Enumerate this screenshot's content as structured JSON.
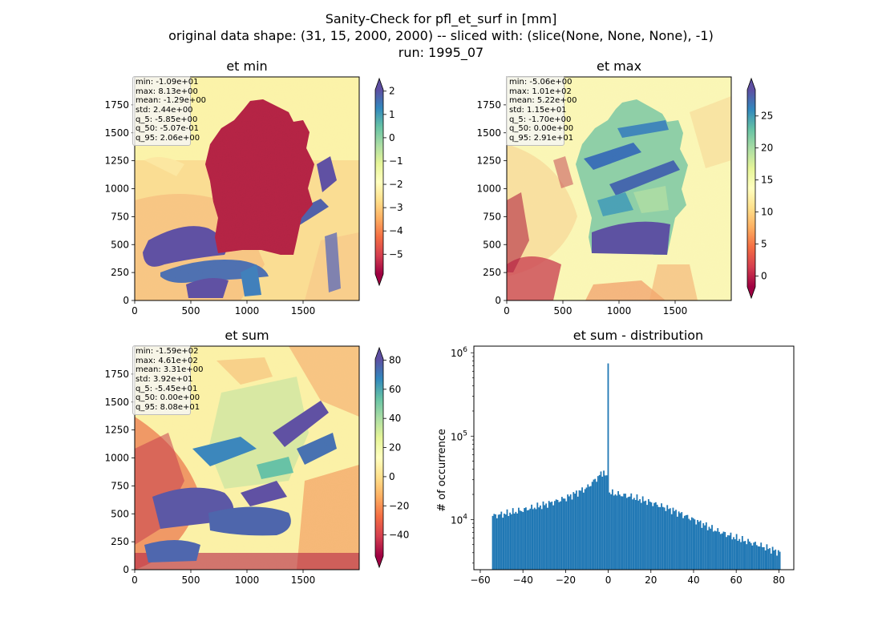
{
  "figure": {
    "title_lines": [
      "Sanity-Check for pfl_et_surf in [mm]",
      "original data shape: (31, 15, 2000, 2000) -- sliced with: (slice(None, None, None), -1)",
      "run: 1995_07"
    ]
  },
  "colors": {
    "background": "#ffffff",
    "hist_bar": "#1f77b4",
    "colormap": "Spectral",
    "spectral_stops": [
      "#9e0142",
      "#d53e4f",
      "#f46d43",
      "#fdae61",
      "#fee08b",
      "#ffffbf",
      "#e6f598",
      "#abdda4",
      "#66c2a5",
      "#3288bd",
      "#5e4fa2"
    ]
  },
  "chart_data": [
    {
      "id": "et_min",
      "type": "heatmap",
      "title": "et min",
      "xlim": [
        0,
        2000
      ],
      "ylim": [
        0,
        2000
      ],
      "xticks": [
        0,
        500,
        1000,
        1500
      ],
      "yticks": [
        0,
        250,
        500,
        750,
        1000,
        1250,
        1500,
        1750
      ],
      "colorbar": {
        "vmin": -5.85,
        "vmax": 2.06,
        "ticks": [
          -5,
          -4,
          -3,
          -2,
          -1,
          0,
          1,
          2
        ],
        "tick_labels": [
          "−5",
          "−4",
          "−3",
          "−2",
          "−1",
          "0",
          "1",
          "2"
        ],
        "extend": "both"
      },
      "stats": [
        "min: -1.09e+01",
        "max: 8.13e+00",
        "mean: -1.29e+00",
        "std: 2.44e+00",
        "q_5: -5.85e+00",
        "q_50: -5.07e-01",
        "q_95: 2.06e+00"
      ]
    },
    {
      "id": "et_max",
      "type": "heatmap",
      "title": "et max",
      "xlim": [
        0,
        2000
      ],
      "ylim": [
        0,
        2000
      ],
      "xticks": [
        0,
        500,
        1000,
        1500
      ],
      "yticks": [
        0,
        250,
        500,
        750,
        1000,
        1250,
        1500,
        1750
      ],
      "colorbar": {
        "vmin": -1.7,
        "vmax": 29.1,
        "ticks": [
          0,
          5,
          10,
          15,
          20,
          25
        ],
        "tick_labels": [
          "0",
          "5",
          "10",
          "15",
          "20",
          "25"
        ],
        "extend": "both"
      },
      "stats": [
        "min: -5.06e+00",
        "max: 1.01e+02",
        "mean: 5.22e+00",
        "std: 1.15e+01",
        "q_5: -1.70e+00",
        "q_50: 0.00e+00",
        "q_95: 2.91e+01"
      ]
    },
    {
      "id": "et_sum",
      "type": "heatmap",
      "title": "et sum",
      "xlim": [
        0,
        2000
      ],
      "ylim": [
        0,
        2000
      ],
      "xticks": [
        0,
        500,
        1000,
        1500
      ],
      "yticks": [
        0,
        250,
        500,
        750,
        1000,
        1250,
        1500,
        1750
      ],
      "colorbar": {
        "vmin": -54.5,
        "vmax": 80.8,
        "ticks": [
          -40,
          -20,
          0,
          20,
          40,
          60,
          80
        ],
        "tick_labels": [
          "−40",
          "−20",
          "0",
          "20",
          "40",
          "60",
          "80"
        ],
        "extend": "both"
      },
      "stats": [
        "min: -1.59e+02",
        "max: 4.61e+02",
        "mean: 3.31e+00",
        "std: 3.92e+01",
        "q_5: -5.45e+01",
        "q_50: 0.00e+00",
        "q_95: 8.08e+01"
      ]
    },
    {
      "id": "et_sum_dist",
      "type": "bar",
      "title": "et sum - distribution",
      "ylabel": "# of occurrence",
      "yscale": "log",
      "xlim": [
        -63,
        87
      ],
      "ylim": [
        2500,
        1200000
      ],
      "xticks": [
        -60,
        -40,
        -20,
        0,
        20,
        40,
        60,
        80
      ],
      "xtick_labels": [
        "−60",
        "−40",
        "−20",
        "0",
        "20",
        "40",
        "60",
        "80"
      ],
      "ytick_exponents": [
        4,
        5,
        6
      ],
      "bins": {
        "start": -54.5,
        "end": 80.8,
        "count": 200
      },
      "profile": [
        {
          "x": -54.5,
          "y": 11000
        },
        {
          "x": -50,
          "y": 11500
        },
        {
          "x": -40,
          "y": 13000
        },
        {
          "x": -30,
          "y": 15000
        },
        {
          "x": -20,
          "y": 18000
        },
        {
          "x": -10,
          "y": 24000
        },
        {
          "x": -5,
          "y": 32000
        },
        {
          "x": -2,
          "y": 38000
        },
        {
          "x": -0.6,
          "y": 30000
        },
        {
          "x": -0.3,
          "y": 820000
        },
        {
          "x": 0.5,
          "y": 21000
        },
        {
          "x": 10,
          "y": 19000
        },
        {
          "x": 20,
          "y": 16000
        },
        {
          "x": 30,
          "y": 13000
        },
        {
          "x": 40,
          "y": 10000
        },
        {
          "x": 50,
          "y": 7500
        },
        {
          "x": 60,
          "y": 6000
        },
        {
          "x": 70,
          "y": 5000
        },
        {
          "x": 80.8,
          "y": 4000
        }
      ]
    }
  ]
}
